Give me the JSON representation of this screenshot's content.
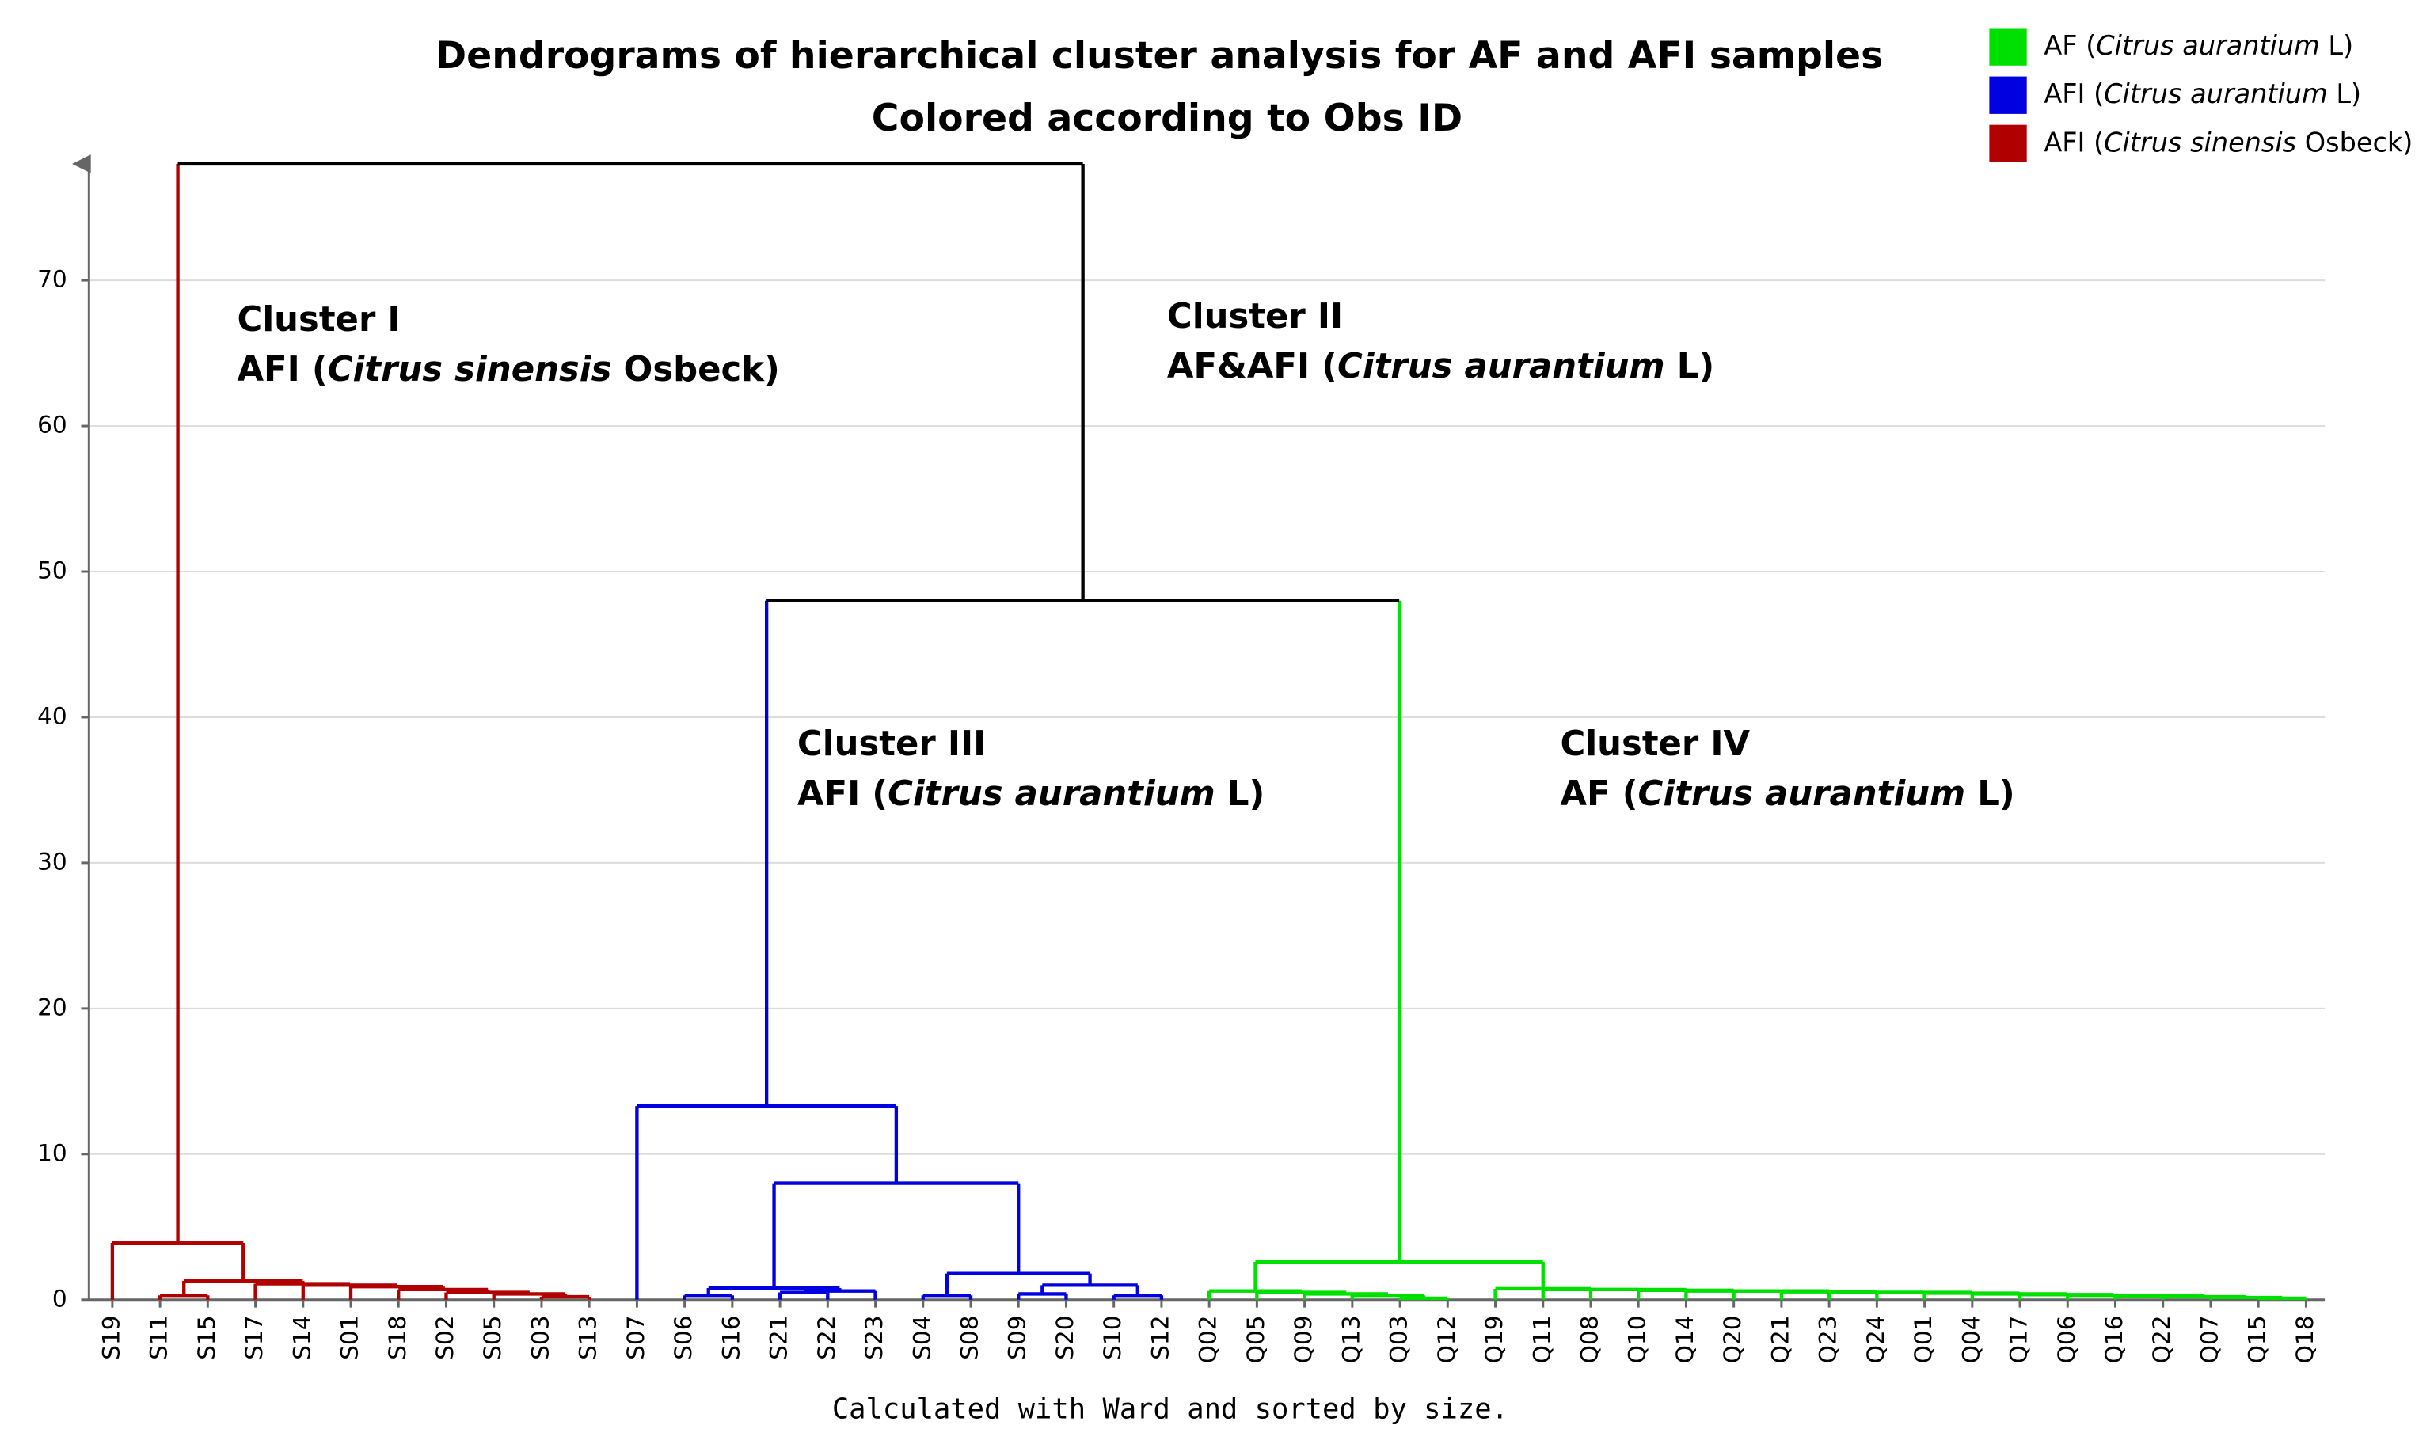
{
  "chart_data": {
    "type": "dendrogram",
    "title": [
      "Dendrograms of hierarchical cluster analysis for AF and AFI samples",
      "Colored according to Obs ID"
    ],
    "xlabel": "Calculated with Ward and sorted by size.",
    "ylim": [
      0,
      78
    ],
    "yticks": [
      0,
      10,
      20,
      30,
      40,
      50,
      60,
      70
    ],
    "grid": true,
    "legend": "upper right",
    "series": [
      {
        "name": [
          "AF (",
          "Citrus aurantium",
          " L)"
        ],
        "color": "#00e000"
      },
      {
        "name": [
          "AFI (",
          "Citrus aurantium",
          " L)"
        ],
        "color": "#0000e0"
      },
      {
        "name": [
          "AFI (",
          "Citrus sinensis",
          " Osbeck)"
        ],
        "color": "#b00000"
      }
    ],
    "annotations": [
      [
        [
          "Cluster I"
        ],
        [
          "AFI (",
          "Citrus sinensis",
          " Osbeck)"
        ]
      ],
      [
        [
          "Cluster II"
        ],
        [
          "AF&AFI (",
          "Citrus aurantium",
          " L)"
        ]
      ],
      [
        [
          "Cluster III"
        ],
        [
          "AFI (",
          "Citrus aurantium",
          " L)"
        ]
      ],
      [
        [
          "Cluster IV"
        ],
        [
          "AF (",
          "Citrus aurantium",
          " L)"
        ]
      ]
    ],
    "categories": [
      "S19",
      "S11",
      "S15",
      "S17",
      "S14",
      "S01",
      "S18",
      "S02",
      "S05",
      "S03",
      "S13",
      "S07",
      "S06",
      "S16",
      "S21",
      "S22",
      "S23",
      "S04",
      "S08",
      "S09",
      "S20",
      "S10",
      "S12",
      "Q02",
      "Q05",
      "Q09",
      "Q13",
      "Q03",
      "Q12",
      "Q19",
      "Q11",
      "Q08",
      "Q10",
      "Q14",
      "Q20",
      "Q21",
      "Q23",
      "Q24",
      "Q01",
      "Q04",
      "Q17",
      "Q06",
      "Q16",
      "Q22",
      "Q07",
      "Q15",
      "Q18"
    ],
    "merges": [
      {
        "children": [
          9,
          10
        ],
        "height": 0.2,
        "color": "#b00000"
      },
      {
        "children": [
          8,
          47
        ],
        "height": 0.4,
        "color": "#b00000"
      },
      {
        "children": [
          7,
          48
        ],
        "height": 0.5,
        "color": "#b00000"
      },
      {
        "children": [
          6,
          49
        ],
        "height": 0.7,
        "color": "#b00000"
      },
      {
        "children": [
          5,
          50
        ],
        "height": 0.9,
        "color": "#b00000"
      },
      {
        "children": [
          4,
          51
        ],
        "height": 1.0,
        "color": "#b00000"
      },
      {
        "children": [
          3,
          52
        ],
        "height": 1.1,
        "color": "#b00000"
      },
      {
        "children": [
          1,
          2
        ],
        "height": 0.3,
        "color": "#b00000"
      },
      {
        "children": [
          54,
          53
        ],
        "height": 1.3,
        "color": "#b00000"
      },
      {
        "children": [
          0,
          55
        ],
        "height": 3.9,
        "color": "#b00000"
      },
      {
        "children": [
          12,
          13
        ],
        "height": 0.3,
        "color": "#0000e0"
      },
      {
        "children": [
          14,
          15
        ],
        "height": 0.5,
        "color": "#0000e0"
      },
      {
        "children": [
          58,
          16
        ],
        "height": 0.6,
        "color": "#0000e0"
      },
      {
        "children": [
          57,
          59
        ],
        "height": 0.8,
        "color": "#0000e0"
      },
      {
        "children": [
          17,
          18
        ],
        "height": 0.3,
        "color": "#0000e0"
      },
      {
        "children": [
          19,
          20
        ],
        "height": 0.4,
        "color": "#0000e0"
      },
      {
        "children": [
          21,
          22
        ],
        "height": 0.3,
        "color": "#0000e0"
      },
      {
        "children": [
          62,
          63
        ],
        "height": 1.0,
        "color": "#0000e0"
      },
      {
        "children": [
          61,
          64
        ],
        "height": 1.8,
        "color": "#0000e0"
      },
      {
        "children": [
          60,
          65
        ],
        "height": 8.0,
        "color": "#0000e0"
      },
      {
        "children": [
          11,
          66
        ],
        "height": 13.3,
        "color": "#0000e0"
      },
      {
        "children": [
          27,
          28
        ],
        "height": 0.1,
        "color": "#00e000"
      },
      {
        "children": [
          26,
          68
        ],
        "height": 0.3,
        "color": "#00e000"
      },
      {
        "children": [
          25,
          69
        ],
        "height": 0.4,
        "color": "#00e000"
      },
      {
        "children": [
          24,
          70
        ],
        "height": 0.5,
        "color": "#00e000"
      },
      {
        "children": [
          23,
          71
        ],
        "height": 0.6,
        "color": "#00e000"
      },
      {
        "children": [
          45,
          46
        ],
        "height": 0.1,
        "color": "#00e000"
      },
      {
        "children": [
          44,
          73
        ],
        "height": 0.15,
        "color": "#00e000"
      },
      {
        "children": [
          43,
          74
        ],
        "height": 0.2,
        "color": "#00e000"
      },
      {
        "children": [
          42,
          75
        ],
        "height": 0.25,
        "color": "#00e000"
      },
      {
        "children": [
          41,
          76
        ],
        "height": 0.3,
        "color": "#00e000"
      },
      {
        "children": [
          40,
          77
        ],
        "height": 0.35,
        "color": "#00e000"
      },
      {
        "children": [
          39,
          78
        ],
        "height": 0.4,
        "color": "#00e000"
      },
      {
        "children": [
          38,
          79
        ],
        "height": 0.45,
        "color": "#00e000"
      },
      {
        "children": [
          37,
          80
        ],
        "height": 0.5,
        "color": "#00e000"
      },
      {
        "children": [
          36,
          81
        ],
        "height": 0.5,
        "color": "#00e000"
      },
      {
        "children": [
          35,
          82
        ],
        "height": 0.55,
        "color": "#00e000"
      },
      {
        "children": [
          34,
          83
        ],
        "height": 0.6,
        "color": "#00e000"
      },
      {
        "children": [
          33,
          84
        ],
        "height": 0.6,
        "color": "#00e000"
      },
      {
        "children": [
          32,
          85
        ],
        "height": 0.65,
        "color": "#00e000"
      },
      {
        "children": [
          31,
          86
        ],
        "height": 0.7,
        "color": "#00e000"
      },
      {
        "children": [
          30,
          87
        ],
        "height": 0.7,
        "color": "#00e000"
      },
      {
        "children": [
          29,
          88
        ],
        "height": 0.75,
        "color": "#00e000"
      },
      {
        "children": [
          72,
          89
        ],
        "height": 2.6,
        "color": "#00e000"
      },
      {
        "children": [
          67,
          90
        ],
        "height": 48.0,
        "color": "#000000"
      },
      {
        "children": [
          56,
          91
        ],
        "height": 78.0,
        "color": "#000000"
      }
    ]
  }
}
